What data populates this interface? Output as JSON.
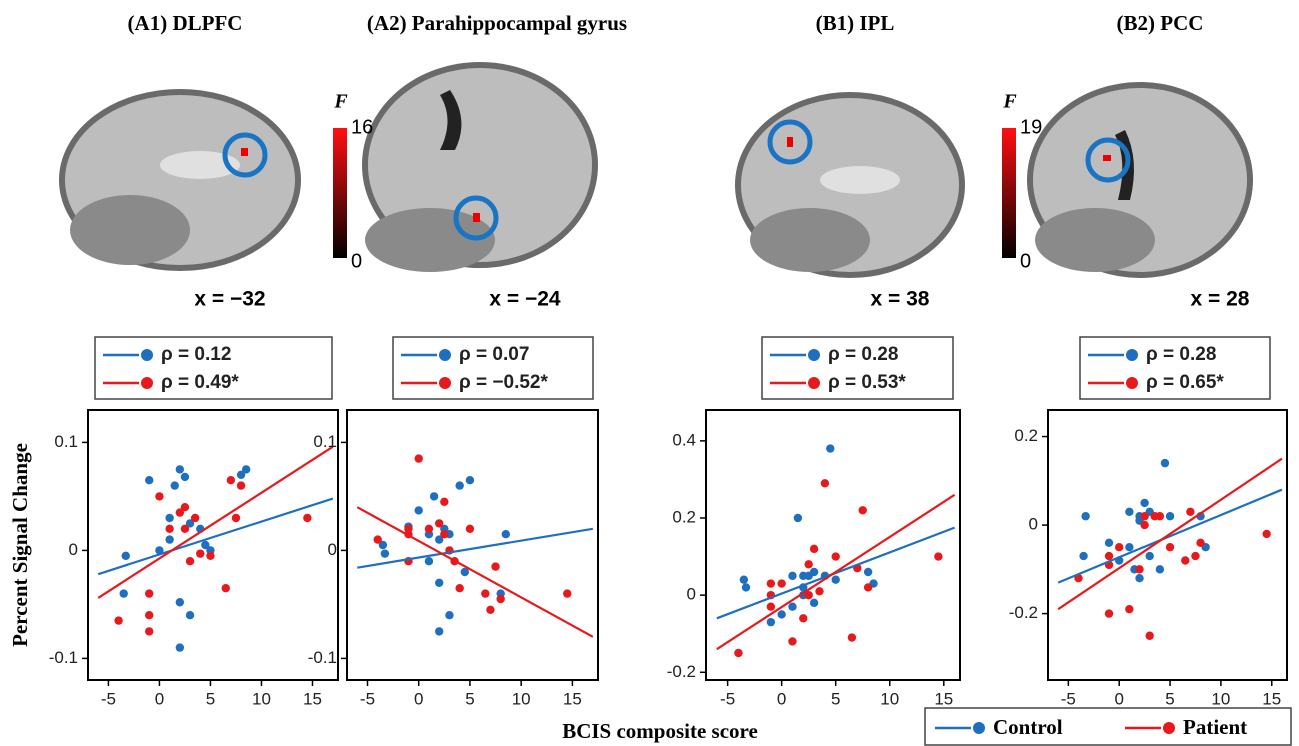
{
  "y_label": "Percent Signal Change",
  "x_label": "BCIS   composite   score",
  "chart_data": [
    {
      "type": "scatter",
      "title": "(A1) DLPFC",
      "slice_label": "x = −32",
      "colorbar": {
        "label": "F",
        "range": [
          0,
          16
        ]
      },
      "xlim": [
        -7,
        17.5
      ],
      "xticks": [
        -5,
        0,
        5,
        10,
        15
      ],
      "ylim": [
        -0.12,
        0.13
      ],
      "yticks": [
        -0.1,
        0,
        0.1
      ],
      "series": [
        {
          "name": "Control",
          "color": "#1f6fc0",
          "stat_label": "ρ = 0.12",
          "x": [
            -3.5,
            -3.3,
            -1,
            0,
            1,
            1,
            1.5,
            2,
            2,
            2,
            2.5,
            3,
            3,
            4,
            4.5,
            5,
            8,
            8.5
          ],
          "values": [
            -0.04,
            -0.005,
            0.065,
            0,
            0.03,
            0.01,
            0.06,
            0.075,
            -0.048,
            -0.09,
            0.068,
            0.025,
            -0.06,
            0.02,
            0.005,
            0,
            0.07,
            0.075
          ],
          "fit": {
            "x": [
              -6,
              17
            ],
            "y": [
              -0.022,
              0.048
            ]
          }
        },
        {
          "name": "Patient",
          "color": "#e8191c",
          "stat_label": "ρ = 0.49*",
          "x": [
            -4,
            -1,
            -1,
            -1,
            0,
            1,
            2,
            2.5,
            2.5,
            3,
            3.5,
            4,
            5,
            6.5,
            7,
            7.5,
            8,
            14.5
          ],
          "values": [
            -0.065,
            -0.04,
            -0.075,
            -0.06,
            0.05,
            0.02,
            0.035,
            0.04,
            0.02,
            -0.01,
            0.03,
            -0.003,
            -0.005,
            -0.035,
            0.065,
            0.03,
            0.06,
            0.03
          ],
          "fit": {
            "x": [
              -6,
              17
            ],
            "y": [
              -0.044,
              0.096
            ]
          }
        }
      ]
    },
    {
      "type": "scatter",
      "title": "(A2) Parahippocampal gyrus",
      "slice_label": "x  = −24",
      "xlim": [
        -7,
        17.5
      ],
      "xticks": [
        -5,
        0,
        5,
        10,
        15
      ],
      "ylim": [
        -0.12,
        0.13
      ],
      "yticks": [
        -0.1,
        0,
        0.1
      ],
      "series": [
        {
          "name": "Control",
          "color": "#1f6fc0",
          "stat_label": "ρ =   0.07",
          "x": [
            -3.5,
            -3.3,
            -1,
            0,
            1,
            1,
            1.5,
            2,
            2,
            2,
            2.5,
            3,
            3,
            4,
            4.5,
            5,
            8,
            8.5
          ],
          "values": [
            0.005,
            -0.003,
            0.022,
            0.037,
            0.015,
            -0.01,
            0.05,
            0.01,
            -0.03,
            -0.075,
            0.02,
            -0.06,
            0.015,
            0.06,
            -0.02,
            0.065,
            -0.04,
            0.015
          ],
          "fit": {
            "x": [
              -6,
              17
            ],
            "y": [
              -0.016,
              0.02
            ]
          }
        },
        {
          "name": "Patient",
          "color": "#e8191c",
          "stat_label": "ρ = −0.52*",
          "x": [
            -4,
            -1,
            -1,
            -1,
            0,
            1,
            2,
            2.5,
            2.5,
            3,
            3.5,
            4,
            5,
            6.5,
            7,
            7.5,
            8,
            14.5
          ],
          "values": [
            0.01,
            0.02,
            -0.01,
            0.015,
            0.085,
            0.02,
            0.025,
            0.015,
            0.045,
            0,
            -0.01,
            -0.035,
            0.02,
            -0.04,
            -0.055,
            -0.015,
            -0.045,
            -0.04
          ],
          "fit": {
            "x": [
              -6,
              17
            ],
            "y": [
              0.04,
              -0.08
            ]
          }
        }
      ]
    },
    {
      "type": "scatter",
      "title": "(B1) IPL",
      "slice_label": "x  = 38",
      "colorbar": {
        "label": "F",
        "range": [
          0,
          19
        ]
      },
      "xlim": [
        -7,
        16.5
      ],
      "xticks": [
        -5,
        0,
        5,
        10,
        15
      ],
      "ylim": [
        -0.22,
        0.48
      ],
      "yticks": [
        -0.2,
        0,
        0.2,
        0.4
      ],
      "series": [
        {
          "name": "Control",
          "color": "#1f6fc0",
          "stat_label": "ρ = 0.28",
          "x": [
            -3.5,
            -3.3,
            -1,
            0,
            1,
            1,
            1.5,
            2,
            2,
            2,
            2.5,
            3,
            3,
            4,
            4.5,
            5,
            8,
            8.5
          ],
          "values": [
            0.04,
            0.02,
            -0.07,
            -0.05,
            0.05,
            -0.03,
            0.2,
            0.05,
            0.02,
            0,
            0.05,
            -0.02,
            0.06,
            0.05,
            0.38,
            0.04,
            0.06,
            0.03
          ],
          "fit": {
            "x": [
              -6,
              16
            ],
            "y": [
              -0.06,
              0.175
            ]
          }
        },
        {
          "name": "Patient",
          "color": "#e8191c",
          "stat_label": "ρ = 0.53*",
          "x": [
            -4,
            -1,
            -1,
            -1,
            0,
            1,
            2,
            2.5,
            2.5,
            3,
            3.5,
            4,
            5,
            6.5,
            7,
            7.5,
            8,
            14.5
          ],
          "values": [
            -0.15,
            0.03,
            0,
            -0.03,
            0.03,
            -0.12,
            -0.06,
            0,
            0.08,
            0.12,
            0.01,
            0.29,
            0.1,
            -0.11,
            0.07,
            0.22,
            0.02,
            0.1
          ],
          "fit": {
            "x": [
              -6,
              16
            ],
            "y": [
              -0.14,
              0.26
            ]
          }
        }
      ]
    },
    {
      "type": "scatter",
      "title": "(B2) PCC",
      "slice_label": "x  = 28",
      "xlim": [
        -7,
        16.5
      ],
      "xticks": [
        -5,
        0,
        5,
        10,
        15
      ],
      "ylim": [
        -0.35,
        0.26
      ],
      "yticks": [
        -0.2,
        0,
        0.2
      ],
      "series": [
        {
          "name": "Control",
          "color": "#1f6fc0",
          "stat_label": "ρ = 0.28",
          "x": [
            -3.5,
            -3.3,
            -1,
            0,
            1,
            1,
            1.5,
            2,
            2,
            2,
            2.5,
            3,
            3,
            4,
            4.5,
            5,
            8,
            8.5
          ],
          "values": [
            -0.07,
            0.02,
            -0.04,
            -0.08,
            0.03,
            -0.05,
            -0.1,
            0.02,
            0.01,
            -0.12,
            0.05,
            -0.07,
            0.03,
            -0.1,
            0.14,
            0.02,
            0.02,
            -0.05
          ],
          "fit": {
            "x": [
              -6,
              16
            ],
            "y": [
              -0.13,
              0.08
            ]
          }
        },
        {
          "name": "Patient",
          "color": "#e8191c",
          "stat_label": "ρ = 0.65*",
          "x": [
            -4,
            -1,
            -1,
            -1,
            0,
            1,
            2,
            2.5,
            2.5,
            3,
            3.5,
            4,
            5,
            6.5,
            7,
            7.5,
            8,
            14.5
          ],
          "values": [
            -0.12,
            -0.07,
            -0.2,
            -0.09,
            -0.05,
            -0.19,
            -0.1,
            0.02,
            0,
            -0.25,
            0.02,
            0.02,
            -0.05,
            -0.08,
            0.03,
            -0.07,
            -0.04,
            -0.02
          ],
          "fit": {
            "x": [
              -6,
              16
            ],
            "y": [
              -0.19,
              0.15
            ]
          }
        }
      ]
    }
  ]
}
